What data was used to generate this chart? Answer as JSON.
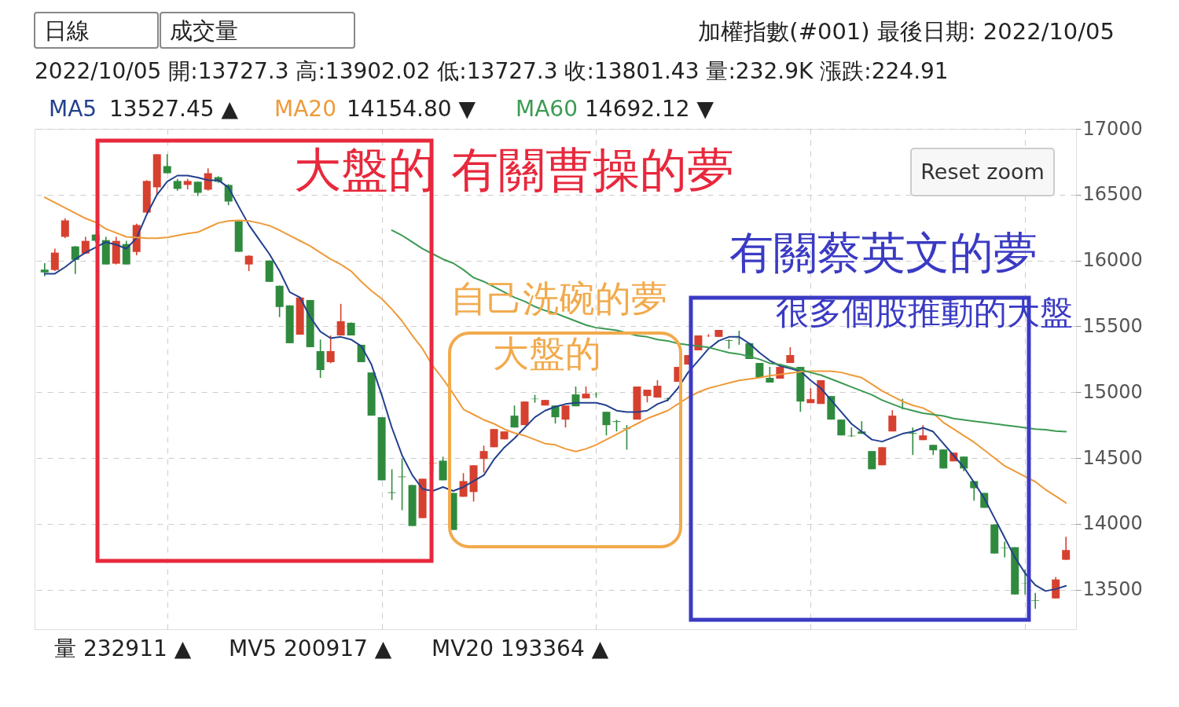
{
  "chart_data": {
    "type": "candlestick",
    "title": "加權指數(#001)   最後日期: 2022/10/05",
    "subtitle": "2022/10/05  開:13727.3  高:13902.02  低:13727.3  收:13801.43  量:232.9K  漲跌:224.91",
    "categories": [
      null,
      null,
      null,
      null,
      null,
      null,
      null,
      null,
      null,
      null,
      null,
      null,
      null,
      null,
      null,
      null,
      null,
      null,
      null,
      null,
      null,
      null,
      null,
      null,
      null,
      null,
      null,
      null,
      null,
      null,
      null,
      null,
      null,
      null,
      null,
      null,
      null,
      null,
      null,
      null,
      null,
      null,
      null,
      null,
      null,
      null,
      null,
      null,
      null,
      null,
      null,
      null,
      null,
      null,
      null,
      null,
      null,
      null,
      null,
      null,
      null,
      null,
      null,
      null,
      null,
      null,
      null,
      null,
      null,
      null,
      null,
      null,
      null,
      null,
      null,
      null,
      null,
      null,
      null,
      null,
      null,
      null,
      null,
      null,
      null,
      null,
      null,
      null,
      null,
      null,
      null,
      null,
      null,
      null,
      null,
      null,
      null,
      null,
      null,
      null,
      null
    ],
    "ohlc": [
      [
        15930,
        15980,
        15880,
        15910
      ],
      [
        15928,
        16090,
        15920,
        16060
      ],
      [
        16180,
        16320,
        16170,
        16305
      ],
      [
        16107,
        16110,
        15898,
        16005
      ],
      [
        16053,
        16180,
        16050,
        16149
      ],
      [
        16197,
        16200,
        16140,
        16150
      ],
      [
        16155,
        16180,
        15970,
        15970
      ],
      [
        15976,
        16180,
        15970,
        16149
      ],
      [
        16125,
        16150,
        15970,
        15970
      ],
      [
        16065,
        16280,
        16040,
        16270
      ],
      [
        16364,
        16610,
        16360,
        16604
      ],
      [
        16556,
        16807,
        16500,
        16807
      ],
      [
        16717,
        16807,
        16663,
        16663
      ],
      [
        16604,
        16620,
        16530,
        16544
      ],
      [
        16574,
        16620,
        16540,
        16604
      ],
      [
        16598,
        16600,
        16490,
        16514
      ],
      [
        16538,
        16700,
        16530,
        16663
      ],
      [
        16633,
        16640,
        16590,
        16598
      ],
      [
        16574,
        16580,
        16420,
        16448
      ],
      [
        16299,
        16300,
        16066,
        16066
      ],
      [
        15970,
        16040,
        15920,
        16036
      ],
      null,
      [
        16000,
        16000,
        15838,
        15838
      ],
      [
        15808,
        15810,
        15570,
        15647
      ],
      [
        15659,
        15660,
        15372,
        15372
      ],
      [
        15437,
        15719,
        15437,
        15719
      ],
      [
        15700,
        15700,
        15342,
        15342
      ],
      [
        15312,
        15400,
        15109,
        15168
      ],
      [
        15228,
        15431,
        15220,
        15312
      ],
      [
        15431,
        15671,
        15431,
        15539
      ],
      [
        15527,
        15530,
        15431,
        15431
      ],
      [
        15360,
        15360,
        15228,
        15228
      ],
      [
        15150,
        15150,
        14822,
        14822
      ],
      [
        14810,
        14810,
        14331,
        14331
      ],
      [
        14240,
        14415,
        14182,
        14235
      ],
      [
        14360,
        14493,
        14104,
        14355
      ],
      [
        14295,
        14295,
        13984,
        13984
      ],
      [
        14044,
        14343,
        14044,
        14343
      ],
      [
        14460,
        14520,
        14400,
        14463
      ],
      [
        14480,
        14510,
        14331,
        14331
      ],
      [
        14235,
        14235,
        13954,
        13954
      ],
      [
        14206,
        14385,
        14206,
        14325
      ],
      [
        14242,
        14445,
        14170,
        14445
      ],
      [
        14493,
        14594,
        14391,
        14553
      ],
      [
        14582,
        14720,
        14582,
        14720
      ],
      [
        14642,
        14702,
        14642,
        14702
      ],
      [
        14822,
        14899,
        14732,
        14732
      ],
      [
        14750,
        14929,
        14750,
        14929
      ],
      [
        14950,
        14980,
        14920,
        14947
      ],
      [
        14899,
        14941,
        14899,
        14941
      ],
      [
        14899,
        14899,
        14762,
        14810
      ],
      [
        14792,
        14899,
        14732,
        14899
      ],
      [
        14983,
        15043,
        14893,
        14893
      ],
      [
        14953,
        15043,
        14953,
        14989
      ],
      [
        14985,
        15000,
        14960,
        14983
      ],
      [
        14851,
        14851,
        14672,
        14750
      ],
      [
        14780,
        14790,
        14702,
        14774
      ],
      [
        14725,
        14750,
        14564,
        14720
      ],
      [
        14792,
        15043,
        14792,
        15043
      ],
      [
        14971,
        15019,
        14923,
        15019
      ],
      [
        14959,
        15091,
        14959,
        15049
      ],
      [
        14950,
        14960,
        14930,
        14947
      ],
      [
        15079,
        15192,
        15079,
        15192
      ],
      [
        15210,
        15282,
        15210,
        15282
      ],
      [
        15318,
        15431,
        15318,
        15431
      ],
      [
        15430,
        15440,
        15420,
        15431
      ],
      [
        15420,
        15473,
        15420,
        15473
      ],
      [
        15395,
        15400,
        15330,
        15390
      ],
      [
        15410,
        15467,
        15360,
        15408
      ],
      [
        15372,
        15372,
        15252,
        15252
      ],
      [
        15222,
        15222,
        15109,
        15109
      ],
      [
        15109,
        15192,
        15073,
        15073
      ],
      [
        15103,
        15192,
        15103,
        15192
      ],
      [
        15222,
        15342,
        15222,
        15282
      ],
      [
        15192,
        15192,
        14851,
        14929
      ],
      [
        14917,
        15031,
        14917,
        14947
      ],
      [
        14911,
        15091,
        14911,
        15091
      ],
      [
        14971,
        14971,
        14792,
        14792
      ],
      [
        14792,
        14792,
        14672,
        14672
      ],
      [
        14670,
        14732,
        14660,
        14666
      ],
      [
        14702,
        14780,
        14684,
        14684
      ],
      [
        14553,
        14553,
        14415,
        14415
      ],
      [
        14445,
        14582,
        14445,
        14582
      ],
      [
        14702,
        14863,
        14702,
        14822
      ],
      [
        14910,
        14950,
        14870,
        14911
      ],
      [
        14690,
        14732,
        14523,
        14684
      ],
      [
        14636,
        14750,
        14636,
        14672
      ],
      [
        14600,
        14600,
        14523,
        14559
      ],
      [
        14565,
        14565,
        14421,
        14421
      ],
      [
        14475,
        14541,
        14475,
        14541
      ],
      [
        14511,
        14511,
        14400,
        14421
      ],
      [
        14325,
        14325,
        14176,
        14271
      ],
      [
        14235,
        14235,
        14122,
        14122
      ],
      [
        13996,
        13996,
        13775,
        13775
      ],
      [
        13820,
        13865,
        13745,
        13817
      ],
      [
        13823,
        13823,
        13464,
        13464
      ],
      [
        13550,
        13655,
        13464,
        13548
      ],
      [
        13420,
        13476,
        13356,
        13416
      ],
      null,
      [
        13434,
        13596,
        13434,
        13578
      ],
      [
        13727.3,
        13902.02,
        13727.3,
        13801.43
      ]
    ],
    "colors": [
      "#2f8a3e",
      "#d6402f",
      "#d6402f",
      "#2f8a3e",
      "#d6402f",
      "#2f8a3e",
      "#2f8a3e",
      "#d6402f",
      "#2f8a3e",
      "#d6402f",
      "#d6402f",
      "#d6402f",
      "#2f8a3e",
      "#2f8a3e",
      "#d6402f",
      "#2f8a3e",
      "#d6402f",
      "#2f8a3e",
      "#2f8a3e",
      "#2f8a3e",
      "#d6402f",
      null,
      "#2f8a3e",
      "#2f8a3e",
      "#2f8a3e",
      "#d6402f",
      "#2f8a3e",
      "#2f8a3e",
      "#d6402f",
      "#d6402f",
      "#2f8a3e",
      "#2f8a3e",
      "#2f8a3e",
      "#2f8a3e",
      "#2f8a3e",
      "#2f8a3e",
      "#2f8a3e",
      "#d6402f",
      "#d6402f",
      "#2f8a3e",
      "#2f8a3e",
      "#d6402f",
      "#d6402f",
      "#d6402f",
      "#d6402f",
      "#d6402f",
      "#2f8a3e",
      "#d6402f",
      "#2f8a3e",
      "#d6402f",
      "#2f8a3e",
      "#d6402f",
      "#2f8a3e",
      "#d6402f",
      "#2f8a3e",
      "#2f8a3e",
      "#2f8a3e",
      "#2f8a3e",
      "#d6402f",
      "#d6402f",
      "#d6402f",
      "#2f8a3e",
      "#d6402f",
      "#d6402f",
      "#d6402f",
      "#d6402f",
      "#d6402f",
      "#2f8a3e",
      "#2f8a3e",
      "#2f8a3e",
      "#2f8a3e",
      "#2f8a3e",
      "#d6402f",
      "#d6402f",
      "#2f8a3e",
      "#d6402f",
      "#d6402f",
      "#2f8a3e",
      "#2f8a3e",
      "#2f8a3e",
      "#2f8a3e",
      "#2f8a3e",
      "#d6402f",
      "#d6402f",
      "#2f8a3e",
      "#2f8a3e",
      "#d6402f",
      "#2f8a3e",
      "#2f8a3e",
      "#d6402f",
      "#2f8a3e",
      "#2f8a3e",
      "#2f8a3e",
      "#2f8a3e",
      "#2f8a3e",
      "#2f8a3e",
      "#2f8a3e",
      "#2f8a3e",
      null,
      "#d6402f",
      "#d6402f"
    ],
    "series": [
      {
        "name": "MA5",
        "type": "line",
        "color": "#23408e",
        "values": [
          15900,
          15900,
          15950,
          16010,
          16060,
          16100,
          16140,
          16120,
          16090,
          16170,
          16350,
          16500,
          16600,
          16645,
          16645,
          16630,
          16610,
          16610,
          16555,
          16410,
          16270,
          16160,
          16050,
          15920,
          15760,
          15720,
          15570,
          15460,
          15410,
          15420,
          15400,
          15350,
          15210,
          14980,
          14730,
          14520,
          14370,
          14265,
          14250,
          14280,
          14250,
          14280,
          14325,
          14370,
          14490,
          14580,
          14650,
          14730,
          14810,
          14860,
          14890,
          14910,
          14920,
          14920,
          14920,
          14900,
          14860,
          14850,
          14850,
          14860,
          14910,
          14940,
          15030,
          15150,
          15240,
          15330,
          15390,
          15420,
          15420,
          15370,
          15300,
          15240,
          15200,
          15180,
          15160,
          15090,
          15030,
          14940,
          14850,
          14760,
          14700,
          14640,
          14625,
          14655,
          14685,
          14700,
          14730,
          14700,
          14610,
          14520,
          14430,
          14315,
          14195,
          14045,
          13895,
          13745,
          13625,
          13535,
          13490,
          13505,
          13530
        ]
      },
      {
        "name": "MA20",
        "type": "line",
        "color": "#ee9a3a",
        "values": [
          16480,
          16440,
          16400,
          16360,
          16320,
          16290,
          16240,
          16210,
          16180,
          16175,
          16170,
          16170,
          16175,
          16190,
          16205,
          16215,
          16250,
          16285,
          16300,
          16305,
          16300,
          16285,
          16265,
          16230,
          16190,
          16150,
          16110,
          16060,
          16010,
          15970,
          15920,
          15840,
          15770,
          15710,
          15630,
          15540,
          15430,
          15330,
          15200,
          15100,
          14990,
          14870,
          14830,
          14790,
          14760,
          14720,
          14690,
          14670,
          14640,
          14610,
          14600,
          14570,
          14550,
          14570,
          14600,
          14640,
          14680,
          14720,
          14760,
          14800,
          14830,
          14860,
          14910,
          14960,
          15000,
          15030,
          15050,
          15070,
          15090,
          15100,
          15110,
          15125,
          15135,
          15145,
          15155,
          15160,
          15160,
          15160,
          15150,
          15130,
          15110,
          15060,
          15010,
          14970,
          14930,
          14900,
          14880,
          14840,
          14770,
          14720,
          14670,
          14620,
          14560,
          14500,
          14440,
          14400,
          14360,
          14320,
          14260,
          14210,
          14160
        ]
      },
      {
        "name": "MA60",
        "type": "line",
        "color": "#3c9a52",
        "values": [
          null,
          null,
          null,
          null,
          null,
          null,
          null,
          null,
          null,
          null,
          null,
          null,
          null,
          null,
          null,
          null,
          null,
          null,
          null,
          null,
          null,
          null,
          null,
          null,
          null,
          null,
          null,
          null,
          null,
          null,
          null,
          null,
          null,
          null,
          16230,
          16190,
          16140,
          16090,
          16050,
          16010,
          15980,
          15930,
          15870,
          15840,
          15800,
          15760,
          15720,
          15690,
          15650,
          15620,
          15600,
          15570,
          15540,
          15510,
          15490,
          15480,
          15470,
          15450,
          15430,
          15420,
          15400,
          15390,
          15370,
          15360,
          15350,
          15340,
          15320,
          15300,
          15290,
          15270,
          15250,
          15220,
          15210,
          15190,
          15170,
          15150,
          15130,
          15100,
          15070,
          15040,
          15010,
          14980,
          14940,
          14910,
          14880,
          14860,
          14840,
          14830,
          14820,
          14800,
          14790,
          14780,
          14770,
          14760,
          14750,
          14740,
          14730,
          14720,
          14715,
          14705,
          14700
        ]
      }
    ],
    "ylim": [
      13200,
      17000
    ],
    "yticks": [
      13500,
      14000,
      14500,
      15000,
      15500,
      16000,
      16500,
      17000
    ],
    "grid": true,
    "tick_labels": "y",
    "annotations": [
      "日線",
      "成交量",
      "13527.45 ▲",
      "14154.80 ▼",
      "14692.12 ▼",
      "Reset zoom",
      "大盤的 有關曹操的夢",
      "有關蔡英文的夢",
      "自己洗碗的夢",
      "大盤的",
      "很多個股推動的大盤",
      "量 232911 ▲",
      "MV5 200917 ▲",
      "MV20 193364 ▲"
    ]
  }
}
